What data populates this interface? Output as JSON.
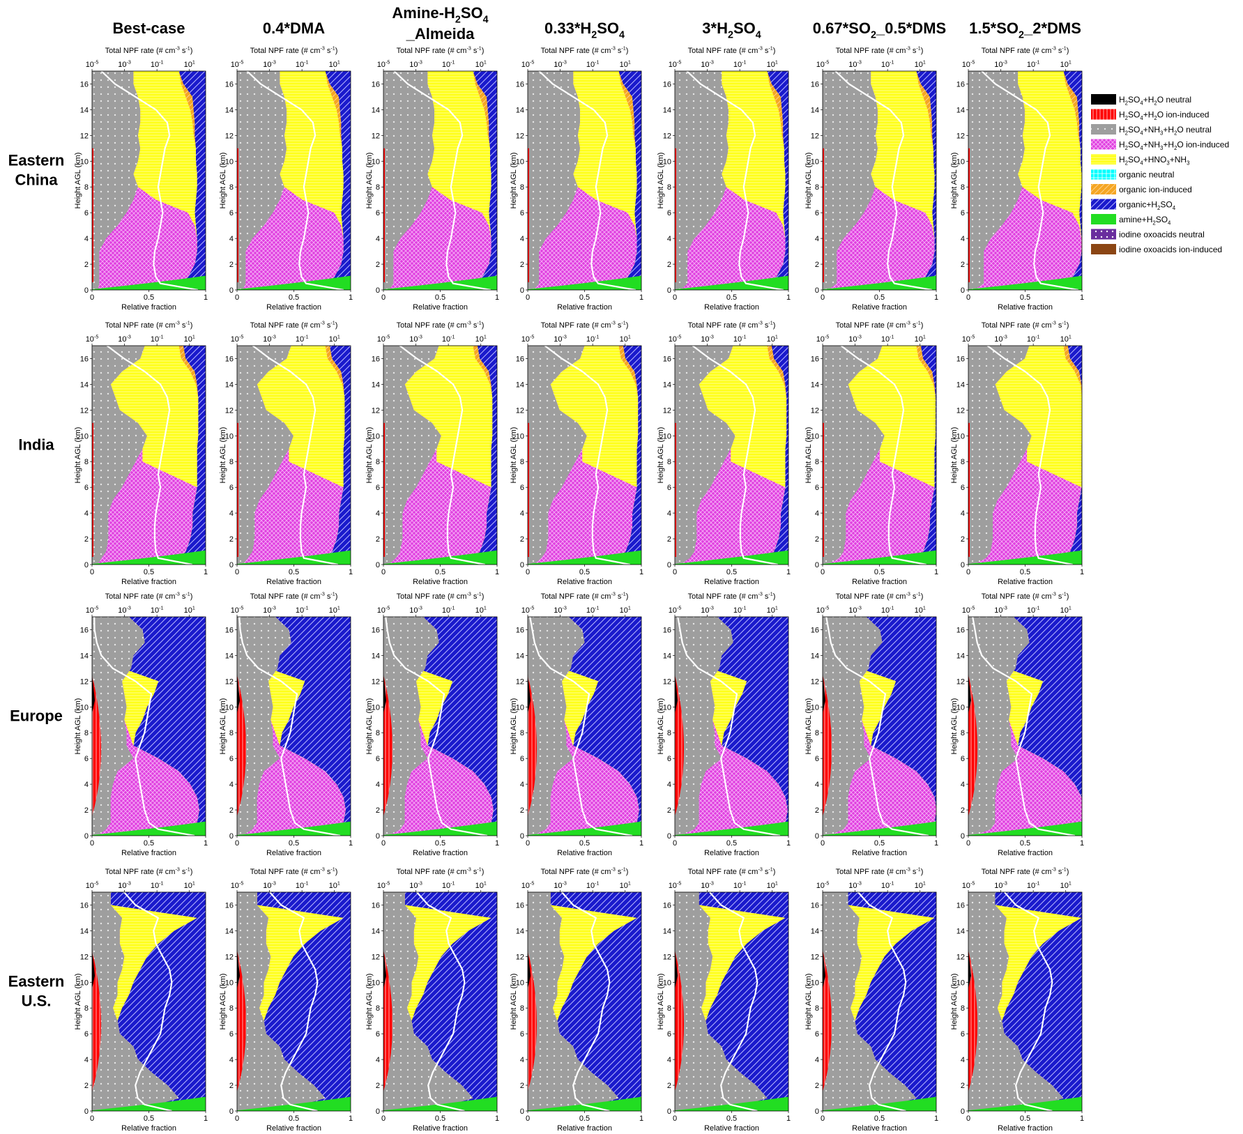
{
  "column_titles": [
    {
      "main": "Best-case"
    },
    {
      "main": "0.4*DMA"
    },
    {
      "main": "Amine-H",
      "sub": "2",
      "tail": "SO",
      "sub2": "4",
      "line2": "_Almeida"
    },
    {
      "main": "0.33*H",
      "sub": "2",
      "tail": "SO",
      "sub2": "4"
    },
    {
      "main": "3*H",
      "sub": "2",
      "tail": "SO",
      "sub2": "4"
    },
    {
      "main": "0.67*SO",
      "sub": "2",
      "tail": "_0.5*DMS"
    },
    {
      "main": "1.5*SO",
      "sub": "2",
      "tail": "_2*DMS"
    }
  ],
  "row_labels": [
    {
      "line1": "Eastern",
      "line2": "China"
    },
    {
      "line1": "India",
      "line2": ""
    },
    {
      "line1": "Europe",
      "line2": ""
    },
    {
      "line1": "Eastern",
      "line2": "U.S."
    }
  ],
  "axes": {
    "top_label_pre": "Total NPF rate (# cm",
    "top_label_sup1": "-3",
    "top_label_mid": " s",
    "top_label_sup2": "-1",
    "top_label_post": ")",
    "top_ticks": [
      {
        "base": "10",
        "exp": "-5"
      },
      {
        "base": "10",
        "exp": "-3"
      },
      {
        "base": "10",
        "exp": "-1"
      },
      {
        "base": "10",
        "exp": "1"
      }
    ],
    "ylabel": "Height AGL (km)",
    "yticks": [
      "0",
      "2",
      "4",
      "6",
      "8",
      "10",
      "12",
      "14",
      "16"
    ],
    "xlabel": "Relative fraction",
    "xticks": [
      "0",
      "0.5",
      "1"
    ]
  },
  "legend": [
    {
      "key": "h2so4_h2o_neutral",
      "parts": [
        [
          "H",
          ""
        ],
        [
          "2",
          "sub"
        ],
        [
          "SO",
          ""
        ],
        [
          "4",
          "sub"
        ],
        [
          "+H",
          ""
        ],
        [
          "2",
          "sub"
        ],
        [
          "O neutral",
          ""
        ]
      ],
      "color": "#000000",
      "pattern": "solid"
    },
    {
      "key": "h2so4_h2o_ion",
      "parts": [
        [
          "H",
          ""
        ],
        [
          "2",
          "sub"
        ],
        [
          "SO",
          ""
        ],
        [
          "4",
          "sub"
        ],
        [
          "+H",
          ""
        ],
        [
          "2",
          "sub"
        ],
        [
          "O ion-induced",
          ""
        ]
      ],
      "color": "#ff0000",
      "pattern": "vlines"
    },
    {
      "key": "h2so4_nh3_h2o_neutral",
      "parts": [
        [
          "H",
          ""
        ],
        [
          "2",
          "sub"
        ],
        [
          "SO",
          ""
        ],
        [
          "4",
          "sub"
        ],
        [
          "+NH",
          ""
        ],
        [
          "3",
          "sub"
        ],
        [
          "+H",
          ""
        ],
        [
          "2",
          "sub"
        ],
        [
          "O neutral",
          ""
        ]
      ],
      "color": "#9e9e9e",
      "pattern": "dots"
    },
    {
      "key": "h2so4_nh3_h2o_ion",
      "parts": [
        [
          "H",
          ""
        ],
        [
          "2",
          "sub"
        ],
        [
          "SO",
          ""
        ],
        [
          "4",
          "sub"
        ],
        [
          "+NH",
          ""
        ],
        [
          "3",
          "sub"
        ],
        [
          "+H",
          ""
        ],
        [
          "2",
          "sub"
        ],
        [
          "O ion-induced",
          ""
        ]
      ],
      "color": "#e040e0",
      "pattern": "cross"
    },
    {
      "key": "h2so4_hno3_nh3",
      "parts": [
        [
          "H",
          ""
        ],
        [
          "2",
          "sub"
        ],
        [
          "SO",
          ""
        ],
        [
          "4",
          "sub"
        ],
        [
          "+HNO",
          ""
        ],
        [
          "3",
          "sub"
        ],
        [
          "+NH",
          ""
        ],
        [
          "3",
          "sub"
        ]
      ],
      "color": "#ffff1a",
      "pattern": "hlines"
    },
    {
      "key": "organic_neutral",
      "parts": [
        [
          "organic neutral",
          ""
        ]
      ],
      "color": "#00ffff",
      "pattern": "grid"
    },
    {
      "key": "organic_ion",
      "parts": [
        [
          "organic ion-induced",
          ""
        ]
      ],
      "color": "#f5a623",
      "pattern": "diag"
    },
    {
      "key": "organic_h2so4",
      "parts": [
        [
          "organic+H",
          ""
        ],
        [
          "2",
          "sub"
        ],
        [
          "SO",
          ""
        ],
        [
          "4",
          "sub"
        ]
      ],
      "color": "#1a1acc",
      "pattern": "diag"
    },
    {
      "key": "amine_h2so4",
      "parts": [
        [
          "amine+H",
          ""
        ],
        [
          "2",
          "sub"
        ],
        [
          "SO",
          ""
        ],
        [
          "4",
          "sub"
        ]
      ],
      "color": "#22dd22",
      "pattern": "solid"
    },
    {
      "key": "iodine_neutral",
      "parts": [
        [
          "iodine oxoacids neutral",
          ""
        ]
      ],
      "color": "#6a2d9e",
      "pattern": "dots"
    },
    {
      "key": "iodine_ion",
      "parts": [
        [
          "iodine oxoacids ion-induced",
          ""
        ]
      ],
      "color": "#8b4513",
      "pattern": "solid"
    }
  ],
  "chart_data": {
    "type": "area",
    "note_axes": {
      "x": "Relative fraction (stacked, 0-1)",
      "y": "Height AGL (km)",
      "ylim": [
        0,
        17
      ],
      "xlim": [
        0,
        1
      ],
      "top_axis": "Total NPF rate, log scale 1e-5 to 1e2"
    },
    "heights": [
      0,
      0.5,
      1,
      2,
      3,
      4,
      5,
      6,
      7,
      8,
      9,
      10,
      11,
      12,
      13,
      14,
      15,
      16,
      17
    ],
    "layer_order": [
      "h2so4_h2o_neutral",
      "h2so4_h2o_ion",
      "h2so4_nh3_h2o_neutral",
      "h2so4_nh3_h2o_ion",
      "h2so4_hno3_nh3",
      "organic_neutral",
      "organic_ion",
      "organic_h2so4",
      "amine_h2so4"
    ],
    "regions": {
      "Eastern China": {
        "boundaries": [
          [
            0.05,
            0.1,
            0.1,
            0.1,
            0.1,
            0.16,
            0.26,
            0.34,
            0.4,
            0.44,
            0.4,
            0.44,
            0.46,
            0.44,
            0.46,
            0.46,
            0.44,
            0.4,
            0.4
          ],
          [
            0.05,
            0.8,
            0.88,
            0.94,
            0.96,
            0.96,
            0.94,
            0.88,
            0.6,
            0.44,
            0.4,
            0.44,
            0.46,
            0.44,
            0.46,
            0.46,
            0.44,
            0.4,
            0.4
          ],
          [
            0.05,
            0.8,
            0.88,
            0.94,
            0.96,
            0.96,
            0.95,
            0.94,
            0.95,
            0.96,
            0.96,
            0.95,
            0.95,
            0.93,
            0.92,
            0.9,
            0.86,
            0.82,
            0.8
          ],
          [
            0.05,
            0.8,
            0.88,
            0.94,
            0.96,
            0.96,
            0.95,
            0.94,
            0.95,
            0.96,
            0.96,
            0.95,
            0.95,
            0.93,
            0.92,
            0.9,
            0.86,
            0.82,
            0.8
          ],
          [
            0.05,
            0.8,
            0.88,
            0.94,
            0.96,
            0.96,
            0.95,
            0.94,
            0.95,
            0.96,
            0.96,
            0.95,
            0.95,
            0.94,
            0.94,
            0.93,
            0.92,
            0.84,
            0.8
          ]
        ],
        "npf_rate": [
          0.95,
          0.62,
          0.58,
          0.56,
          0.57,
          0.6,
          0.62,
          0.64,
          0.62,
          0.6,
          0.62,
          0.64,
          0.66,
          0.7,
          0.68,
          0.58,
          0.4,
          0.22,
          0.1
        ]
      },
      "India": {
        "boundaries": [
          [
            0.05,
            0.12,
            0.16,
            0.18,
            0.18,
            0.18,
            0.22,
            0.3,
            0.36,
            0.42,
            0.48,
            0.52,
            0.44,
            0.28,
            0.24,
            0.2,
            0.3,
            0.46,
            0.5
          ],
          [
            0.05,
            0.8,
            0.86,
            0.9,
            0.92,
            0.92,
            0.94,
            0.96,
            0.72,
            0.48,
            0.48,
            0.52,
            0.44,
            0.28,
            0.24,
            0.2,
            0.3,
            0.46,
            0.5
          ],
          [
            0.05,
            0.8,
            0.86,
            0.9,
            0.92,
            0.92,
            0.94,
            0.96,
            0.96,
            0.96,
            0.96,
            0.97,
            0.97,
            0.97,
            0.97,
            0.95,
            0.9,
            0.82,
            0.8
          ],
          [
            0.05,
            0.8,
            0.86,
            0.9,
            0.92,
            0.92,
            0.94,
            0.96,
            0.96,
            0.96,
            0.96,
            0.97,
            0.97,
            0.97,
            0.97,
            0.95,
            0.9,
            0.82,
            0.8
          ],
          [
            0.05,
            0.8,
            0.86,
            0.9,
            0.92,
            0.92,
            0.94,
            0.96,
            0.96,
            0.96,
            0.96,
            0.97,
            0.97,
            0.97,
            0.97,
            0.96,
            0.94,
            0.86,
            0.84
          ]
        ],
        "npf_rate": [
          0.9,
          0.6,
          0.58,
          0.57,
          0.57,
          0.58,
          0.6,
          0.62,
          0.6,
          0.62,
          0.64,
          0.66,
          0.68,
          0.7,
          0.68,
          0.62,
          0.48,
          0.3,
          0.15
        ]
      },
      "Europe": {
        "boundaries": [
          [
            0.05,
            0.16,
            0.2,
            0.2,
            0.2,
            0.22,
            0.26,
            0.4,
            0.34,
            0.34,
            0.32,
            0.34,
            0.32,
            0.3,
            0.38,
            0.4,
            0.5,
            0.48,
            0.36
          ],
          [
            0.05,
            0.92,
            0.96,
            0.98,
            0.96,
            0.9,
            0.8,
            0.62,
            0.4,
            0.36,
            0.32,
            0.34,
            0.32,
            0.3,
            0.38,
            0.4,
            0.5,
            0.48,
            0.36
          ],
          [
            0.05,
            0.92,
            0.96,
            0.98,
            0.96,
            0.9,
            0.8,
            0.62,
            0.4,
            0.42,
            0.48,
            0.52,
            0.58,
            0.62,
            0.3,
            0.4,
            0.5,
            0.48,
            0.36
          ],
          [
            0.05,
            0.92,
            0.96,
            0.98,
            0.96,
            0.9,
            0.8,
            0.62,
            0.4,
            0.42,
            0.48,
            0.52,
            0.58,
            0.62,
            0.3,
            0.4,
            0.5,
            0.48,
            0.36
          ],
          [
            0.05,
            0.92,
            0.96,
            0.98,
            0.96,
            0.9,
            0.8,
            0.62,
            0.4,
            0.42,
            0.48,
            0.52,
            0.58,
            0.62,
            0.3,
            0.4,
            0.5,
            0.48,
            0.36
          ]
        ],
        "npf_rate": [
          0.92,
          0.6,
          0.52,
          0.48,
          0.46,
          0.44,
          0.42,
          0.4,
          0.44,
          0.48,
          0.5,
          0.52,
          0.54,
          0.4,
          0.2,
          0.1,
          0.06,
          0.04,
          0.02
        ]
      },
      "Eastern U.S.": {
        "boundaries": [
          [
            0.05,
            0.6,
            0.8,
            0.7,
            0.56,
            0.44,
            0.4,
            0.28,
            0.26,
            0.22,
            0.26,
            0.26,
            0.3,
            0.32,
            0.28,
            0.28,
            0.3,
            0.2,
            0.2
          ],
          [
            0.05,
            0.6,
            0.8,
            0.7,
            0.56,
            0.44,
            0.4,
            0.28,
            0.26,
            0.22,
            0.26,
            0.26,
            0.3,
            0.32,
            0.28,
            0.28,
            0.3,
            0.2,
            0.2
          ],
          [
            0.05,
            0.6,
            0.8,
            0.7,
            0.56,
            0.44,
            0.4,
            0.28,
            0.26,
            0.22,
            0.26,
            0.26,
            0.3,
            0.32,
            0.28,
            0.28,
            0.3,
            0.2,
            0.2
          ],
          [
            0.05,
            0.6,
            0.8,
            0.7,
            0.56,
            0.44,
            0.4,
            0.28,
            0.26,
            0.3,
            0.36,
            0.4,
            0.46,
            0.52,
            0.62,
            0.76,
            0.96,
            0.2,
            0.2
          ],
          [
            0.05,
            0.6,
            0.8,
            0.7,
            0.56,
            0.44,
            0.4,
            0.28,
            0.26,
            0.3,
            0.36,
            0.4,
            0.46,
            0.52,
            0.62,
            0.76,
            0.96,
            0.2,
            0.2
          ]
        ],
        "npf_rate": [
          0.72,
          0.48,
          0.42,
          0.4,
          0.44,
          0.5,
          0.56,
          0.62,
          0.64,
          0.66,
          0.7,
          0.72,
          0.7,
          0.64,
          0.58,
          0.56,
          0.6,
          0.4,
          0.3
        ]
      }
    }
  }
}
